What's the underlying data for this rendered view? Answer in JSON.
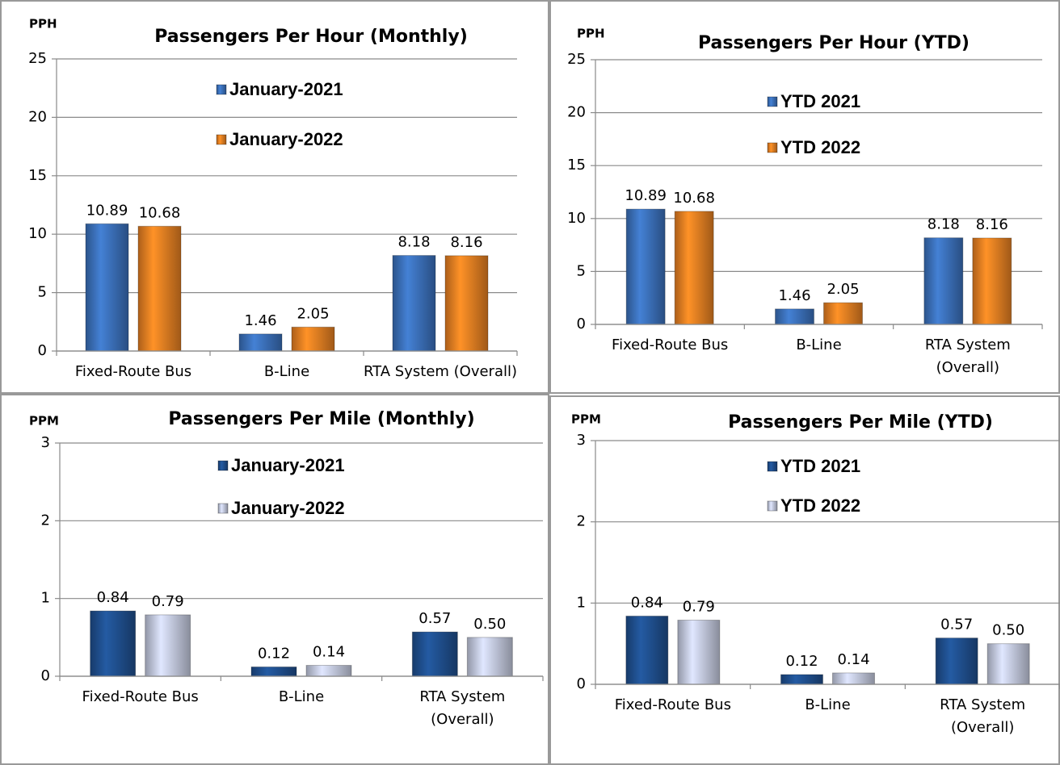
{
  "chart_data": [
    {
      "type": "bar",
      "title": "Passengers Per Hour (Monthly)",
      "y_label": "PPH",
      "categories": [
        "Fixed-Route Bus",
        "B-Line",
        "RTA System (Overall)"
      ],
      "series": [
        {
          "name": "January-2021",
          "color": "#3b70b9",
          "values": [
            10.89,
            1.46,
            8.18
          ],
          "value_labels": [
            "10.89",
            "1.46",
            "8.18"
          ]
        },
        {
          "name": "January-2022",
          "color": "#e57f22",
          "values": [
            10.68,
            2.05,
            8.16
          ],
          "value_labels": [
            "10.68",
            "2.05",
            "8.16"
          ]
        }
      ],
      "ylim": [
        0,
        25
      ],
      "yticks": [
        0,
        5,
        10,
        15,
        20,
        25
      ],
      "grid": true
    },
    {
      "type": "bar",
      "title": "Passengers Per Hour (YTD)",
      "y_label": "PPH",
      "categories": [
        "Fixed-Route Bus",
        "B-Line",
        "RTA System (Overall)"
      ],
      "series": [
        {
          "name": "YTD 2021",
          "color": "#3b70b9",
          "values": [
            10.89,
            1.46,
            8.18
          ],
          "value_labels": [
            "10.89",
            "1.46",
            "8.18"
          ]
        },
        {
          "name": "YTD 2022",
          "color": "#e57f22",
          "values": [
            10.68,
            2.05,
            8.16
          ],
          "value_labels": [
            "10.68",
            "2.05",
            "8.16"
          ]
        }
      ],
      "ylim": [
        0,
        25
      ],
      "yticks": [
        0,
        5,
        10,
        15,
        20,
        25
      ],
      "grid": true
    },
    {
      "type": "bar",
      "title": "Passengers Per Mile (Monthly)",
      "y_label": "PPM",
      "categories": [
        "Fixed-Route Bus",
        "B-Line",
        "RTA System (Overall)"
      ],
      "series": [
        {
          "name": "January-2021",
          "color": "#1f4f8e",
          "values": [
            0.84,
            0.12,
            0.57
          ],
          "value_labels": [
            "0.84",
            "0.12",
            "0.57"
          ]
        },
        {
          "name": "January-2022",
          "color": "#c3c9de",
          "values": [
            0.79,
            0.14,
            0.5
          ],
          "value_labels": [
            "0.79",
            "0.14",
            "0.50"
          ]
        }
      ],
      "ylim": [
        0,
        3
      ],
      "yticks": [
        0,
        1,
        2,
        3
      ],
      "grid": true
    },
    {
      "type": "bar",
      "title": "Passengers Per Mile (YTD)",
      "y_label": "PPM",
      "categories": [
        "Fixed-Route Bus",
        "B-Line",
        "RTA System (Overall)"
      ],
      "series": [
        {
          "name": "YTD 2021",
          "color": "#1f4f8e",
          "values": [
            0.84,
            0.12,
            0.57
          ],
          "value_labels": [
            "0.84",
            "0.12",
            "0.57"
          ]
        },
        {
          "name": "YTD 2022",
          "color": "#c3c9de",
          "values": [
            0.79,
            0.14,
            0.5
          ],
          "value_labels": [
            "0.79",
            "0.14",
            "0.50"
          ]
        }
      ],
      "ylim": [
        0,
        3
      ],
      "yticks": [
        0,
        1,
        2,
        3
      ],
      "grid": true
    }
  ]
}
